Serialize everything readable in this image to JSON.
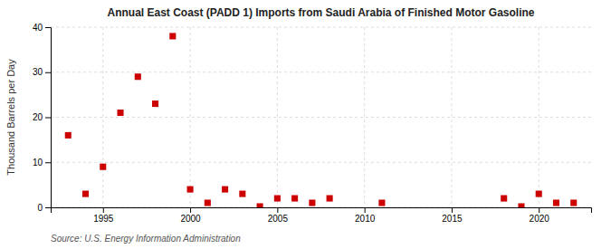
{
  "chart_data": {
    "type": "scatter",
    "title": "Annual East Coast (PADD 1) Imports from Saudi Arabia of Finished Motor Gasoline",
    "y_label": "Thousand Barrels per Day",
    "source": "Source: U.S. Energy Information Administration",
    "x": [
      1993,
      1994,
      1995,
      1996,
      1997,
      1998,
      1999,
      2000,
      2001,
      2002,
      2003,
      2004,
      2005,
      2006,
      2007,
      2008,
      2011,
      2018,
      2019,
      2020,
      2021,
      2022
    ],
    "values": [
      16,
      3,
      9,
      21,
      29,
      23,
      38,
      4,
      1,
      4,
      3,
      0.2,
      2,
      2,
      1,
      2,
      1,
      2,
      0.2,
      3,
      1,
      1
    ],
    "color": "#cc0000",
    "marker": "square",
    "xlim": [
      1992,
      2023
    ],
    "ylim": [
      0,
      40
    ],
    "xticks": [
      1995,
      2000,
      2005,
      2010,
      2015,
      2020
    ],
    "yticks": [
      0,
      10,
      20,
      30,
      40
    ],
    "grid": true
  }
}
